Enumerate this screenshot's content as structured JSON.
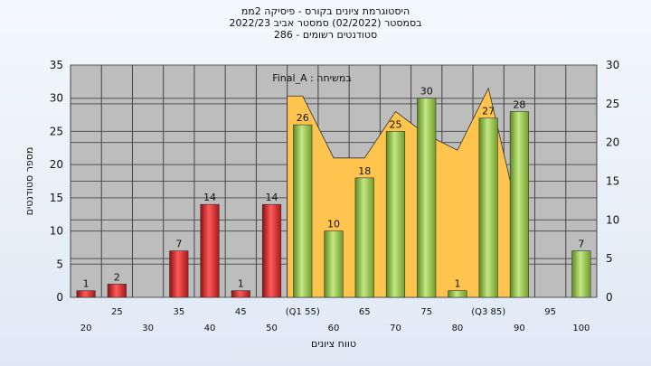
{
  "header": {
    "line1": "היסטוגרמת ציונים בקורס - פיסיקה 2ממ",
    "line2": "בסמסטר  (02/2022)  סמסטר אביב 2022/23",
    "line3": "סטודנטים רשומים - 286"
  },
  "chart_data": {
    "type": "bar",
    "series_label": "Final_A : במשיחה",
    "xlabel": "טווח ציונים",
    "ylabel": "מספר סטודנטים",
    "categories": [
      "20",
      "25",
      "30",
      "35",
      "40",
      "45",
      "50",
      "(Q1 55)",
      "60",
      "65",
      "70",
      "75",
      "80",
      "(Q3 85)",
      "90",
      "95",
      "100"
    ],
    "values": [
      1,
      2,
      0,
      7,
      14,
      1,
      14,
      26,
      10,
      18,
      25,
      30,
      1,
      27,
      28,
      0,
      7
    ],
    "bar_colors": [
      "red",
      "red",
      "red",
      "red",
      "red",
      "red",
      "red",
      "green",
      "green",
      "green",
      "green",
      "green",
      "green",
      "green",
      "green",
      "green",
      "green"
    ],
    "labels": [
      "1",
      "2",
      "",
      "7",
      "14",
      "1",
      "14",
      "26",
      "10",
      "18",
      "25",
      "30",
      "1",
      "27",
      "28",
      "",
      "7"
    ],
    "area_values": [
      null,
      null,
      null,
      null,
      null,
      null,
      null,
      26,
      18,
      18,
      24,
      21,
      19,
      27,
      10,
      null,
      null
    ],
    "ylim_left": [
      0,
      35
    ],
    "yticks_left": [
      0,
      5,
      10,
      15,
      20,
      25,
      30,
      35
    ],
    "ylim_right": [
      0,
      30
    ],
    "yticks_right": [
      0,
      5,
      10,
      15,
      20,
      25,
      30
    ],
    "colors": {
      "red_bar": "#e02a2a",
      "green_bar": "#93c443",
      "area": "#ffc44d",
      "plot_bg": "#bdbdbd"
    }
  }
}
